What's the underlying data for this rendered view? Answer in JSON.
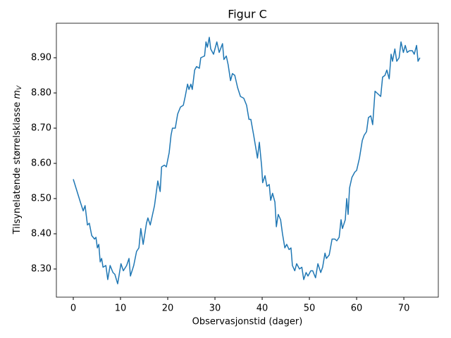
{
  "chart_data": {
    "type": "line",
    "title": "Figur C",
    "xlabel": "Observasjonstid (dager)",
    "ylabel": "Tilsynelatende størrelsklasse",
    "ylabel_symbol": "m",
    "ylabel_subscript": "V",
    "color": "#1f77b4",
    "xlim": [
      -3.58,
      77.3
    ],
    "ylim": [
      8.22,
      8.998
    ],
    "xticks": [
      0,
      10,
      20,
      30,
      40,
      50,
      60,
      70
    ],
    "yticks": [
      {
        "value": 8.3,
        "label": "8.30"
      },
      {
        "value": 8.4,
        "label": "8.40"
      },
      {
        "value": 8.5,
        "label": "8.50"
      },
      {
        "value": 8.6,
        "label": "8.60"
      },
      {
        "value": 8.7,
        "label": "8.70"
      },
      {
        "value": 8.8,
        "label": "8.80"
      },
      {
        "value": 8.9,
        "label": "8.90"
      }
    ],
    "x": [
      0,
      1.5,
      2.1,
      2.5,
      3,
      3.4,
      3.9,
      4.5,
      4.8,
      5.1,
      5.4,
      5.7,
      6,
      6.3,
      6.9,
      7.3,
      7.8,
      8.4,
      8.8,
      9.4,
      10.1,
      10.6,
      11.3,
      11.8,
      12.1,
      12.8,
      13.4,
      13.9,
      14.3,
      14.8,
      15.5,
      15.8,
      16.3,
      17.2,
      17.9,
      18.4,
      18.7,
      19.3,
      19.7,
      20.3,
      20.7,
      21,
      21.6,
      22.1,
      22.7,
      23.3,
      23.7,
      24.2,
      24.5,
      24.9,
      25.2,
      25.7,
      26.1,
      26.7,
      27,
      27.8,
      28.1,
      28.4,
      28.8,
      29.1,
      29.7,
      30.4,
      30.9,
      31.6,
      31.9,
      32.4,
      32.8,
      33.3,
      33.7,
      34.2,
      34.8,
      35.4,
      36.1,
      36.7,
      37.2,
      37.6,
      38.2,
      38.7,
      39,
      39.4,
      39.9,
      40.1,
      40.6,
      41,
      41.5,
      41.8,
      42.2,
      42.7,
      43,
      43.4,
      43.9,
      44.3,
      44.8,
      45.2,
      45.7,
      46.1,
      46.4,
      46.9,
      47.3,
      47.9,
      48.4,
      48.8,
      49.3,
      49.7,
      50.3,
      50.7,
      51.3,
      51.8,
      52.4,
      52.8,
      53.3,
      53.6,
      54.2,
      54.8,
      55.4,
      55.8,
      56.3,
      56.7,
      57,
      57.6,
      57.9,
      58.2,
      58.5,
      59,
      59.6,
      60,
      60.6,
      61.2,
      61.6,
      62.1,
      62.5,
      63,
      63.4,
      63.9,
      64.3,
      65.1,
      65.5,
      66,
      66.4,
      66.9,
      67.3,
      67.6,
      68.1,
      68.5,
      69,
      69.4,
      69.9,
      70.3,
      70.7,
      71.2,
      71.8,
      72.2,
      72.7,
      73,
      73.4
    ],
    "values": [
      8.555,
      8.49,
      8.465,
      8.48,
      8.425,
      8.43,
      8.395,
      8.385,
      8.39,
      8.36,
      8.37,
      8.32,
      8.33,
      8.305,
      8.31,
      8.27,
      8.31,
      8.29,
      8.285,
      8.258,
      8.315,
      8.295,
      8.31,
      8.33,
      8.28,
      8.31,
      8.35,
      8.36,
      8.415,
      8.37,
      8.43,
      8.445,
      8.425,
      8.48,
      8.55,
      8.52,
      8.59,
      8.595,
      8.59,
      8.63,
      8.68,
      8.7,
      8.7,
      8.74,
      8.76,
      8.765,
      8.79,
      8.825,
      8.81,
      8.825,
      8.81,
      8.865,
      8.875,
      8.87,
      8.9,
      8.905,
      8.945,
      8.93,
      8.958,
      8.925,
      8.91,
      8.945,
      8.915,
      8.94,
      8.895,
      8.905,
      8.88,
      8.835,
      8.855,
      8.85,
      8.815,
      8.79,
      8.785,
      8.765,
      8.725,
      8.725,
      8.68,
      8.64,
      8.615,
      8.66,
      8.59,
      8.545,
      8.565,
      8.535,
      8.54,
      8.495,
      8.515,
      8.49,
      8.42,
      8.455,
      8.44,
      8.4,
      8.36,
      8.37,
      8.355,
      8.36,
      8.31,
      8.295,
      8.315,
      8.3,
      8.305,
      8.27,
      8.29,
      8.28,
      8.295,
      8.295,
      8.275,
      8.315,
      8.29,
      8.305,
      8.345,
      8.33,
      8.34,
      8.385,
      8.385,
      8.38,
      8.39,
      8.44,
      8.415,
      8.44,
      8.5,
      8.455,
      8.53,
      8.56,
      8.575,
      8.58,
      8.615,
      8.665,
      8.68,
      8.69,
      8.73,
      8.735,
      8.71,
      8.805,
      8.8,
      8.79,
      8.845,
      8.85,
      8.865,
      8.84,
      8.91,
      8.89,
      8.925,
      8.89,
      8.9,
      8.945,
      8.915,
      8.935,
      8.915,
      8.92,
      8.92,
      8.91,
      8.935,
      8.89,
      8.9
    ]
  }
}
